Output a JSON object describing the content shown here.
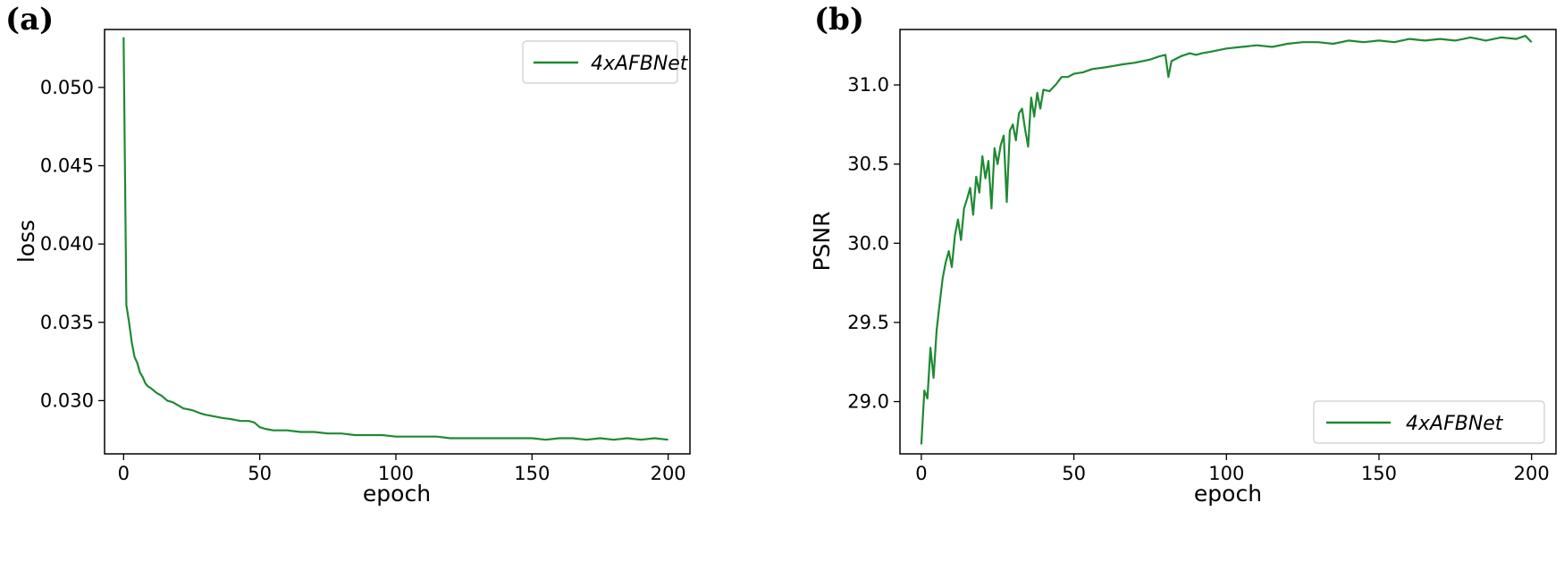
{
  "panels": [
    {
      "label": "(a)"
    },
    {
      "label": "(b)"
    }
  ],
  "colors": {
    "line": "#1e8a33",
    "frame": "#000000",
    "legend_border": "#cccccc"
  },
  "chart_data": [
    {
      "type": "line",
      "xlabel": "epoch",
      "ylabel": "loss",
      "xlim": [
        -7,
        208
      ],
      "ylim": [
        0.0266,
        0.0537
      ],
      "xticks": [
        0,
        50,
        100,
        150,
        200
      ],
      "xtick_labels": [
        "0",
        "50",
        "100",
        "150",
        "200"
      ],
      "yticks": [
        0.03,
        0.035,
        0.04,
        0.045,
        0.05
      ],
      "ytick_labels": [
        "0.030",
        "0.035",
        "0.040",
        "0.045",
        "0.050"
      ],
      "grid": false,
      "legend_position": "upper right",
      "series": [
        {
          "name": "4xAFBNet",
          "x": [
            0,
            1,
            2,
            3,
            4,
            5,
            6,
            7,
            8,
            9,
            10,
            12,
            14,
            16,
            18,
            20,
            22,
            25,
            28,
            30,
            33,
            36,
            40,
            43,
            46,
            48,
            50,
            52,
            55,
            58,
            60,
            65,
            70,
            75,
            80,
            85,
            90,
            95,
            100,
            105,
            110,
            115,
            120,
            125,
            130,
            135,
            140,
            145,
            150,
            155,
            160,
            165,
            170,
            175,
            180,
            185,
            190,
            195,
            200
          ],
          "y": [
            0.0532,
            0.0361,
            0.035,
            0.0337,
            0.0328,
            0.0324,
            0.0318,
            0.0315,
            0.0311,
            0.0309,
            0.0308,
            0.0305,
            0.0303,
            0.03,
            0.0299,
            0.0297,
            0.0295,
            0.0294,
            0.0292,
            0.0291,
            0.029,
            0.0289,
            0.0288,
            0.0287,
            0.0287,
            0.0286,
            0.0283,
            0.0282,
            0.0281,
            0.0281,
            0.0281,
            0.028,
            0.028,
            0.0279,
            0.0279,
            0.0278,
            0.0278,
            0.0278,
            0.0277,
            0.0277,
            0.0277,
            0.0277,
            0.0276,
            0.0276,
            0.0276,
            0.0276,
            0.0276,
            0.0276,
            0.0276,
            0.0275,
            0.0276,
            0.0276,
            0.0275,
            0.0276,
            0.0275,
            0.0276,
            0.0275,
            0.0276,
            0.0275
          ]
        }
      ]
    },
    {
      "type": "line",
      "xlabel": "epoch",
      "ylabel": "PSNR",
      "xlim": [
        -7,
        208
      ],
      "ylim": [
        28.67,
        31.35
      ],
      "xticks": [
        0,
        50,
        100,
        150,
        200
      ],
      "xtick_labels": [
        "0",
        "50",
        "100",
        "150",
        "200"
      ],
      "yticks": [
        29.0,
        29.5,
        30.0,
        30.5,
        31.0
      ],
      "ytick_labels": [
        "29.0",
        "29.5",
        "30.0",
        "30.5",
        "31.0"
      ],
      "grid": false,
      "legend_position": "lower right",
      "series": [
        {
          "name": "4xAFBNet",
          "x": [
            0,
            1,
            2,
            3,
            4,
            5,
            6,
            7,
            8,
            9,
            10,
            11,
            12,
            13,
            14,
            15,
            16,
            17,
            18,
            19,
            20,
            21,
            22,
            23,
            24,
            25,
            26,
            27,
            28,
            29,
            30,
            31,
            32,
            33,
            34,
            35,
            36,
            37,
            38,
            39,
            40,
            42,
            44,
            46,
            48,
            50,
            53,
            56,
            60,
            63,
            66,
            70,
            75,
            78,
            80,
            81,
            82,
            85,
            88,
            90,
            92,
            95,
            100,
            105,
            110,
            115,
            120,
            125,
            130,
            135,
            140,
            145,
            150,
            155,
            160,
            165,
            170,
            175,
            180,
            185,
            190,
            195,
            198,
            200
          ],
          "y": [
            28.73,
            29.07,
            29.02,
            29.34,
            29.15,
            29.45,
            29.62,
            29.78,
            29.88,
            29.95,
            29.85,
            30.05,
            30.15,
            30.02,
            30.22,
            30.28,
            30.35,
            30.18,
            30.42,
            30.32,
            30.55,
            30.41,
            30.52,
            30.22,
            30.6,
            30.5,
            30.62,
            30.68,
            30.26,
            30.71,
            30.75,
            30.65,
            30.82,
            30.85,
            30.72,
            30.61,
            30.92,
            30.8,
            30.95,
            30.85,
            30.97,
            30.96,
            31.0,
            31.05,
            31.05,
            31.07,
            31.08,
            31.1,
            31.11,
            31.12,
            31.13,
            31.14,
            31.16,
            31.18,
            31.19,
            31.05,
            31.15,
            31.18,
            31.2,
            31.19,
            31.2,
            31.21,
            31.23,
            31.24,
            31.25,
            31.24,
            31.26,
            31.27,
            31.27,
            31.26,
            31.28,
            31.27,
            31.28,
            31.27,
            31.29,
            31.28,
            31.29,
            31.28,
            31.3,
            31.28,
            31.3,
            31.29,
            31.31,
            31.27
          ]
        }
      ]
    }
  ]
}
